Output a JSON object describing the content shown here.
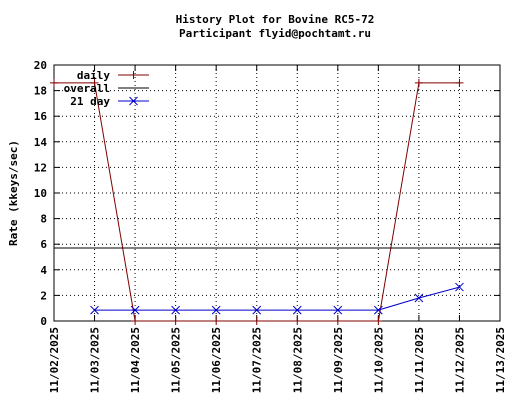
{
  "chart_data": {
    "type": "line",
    "title": "History Plot for Bovine RC5-72",
    "subtitle": "Participant flyid@pochtamt.ru",
    "xlabel": "",
    "ylabel": "Rate (kkeys/sec)",
    "xlim": [
      "11/02/2025",
      "11/13/2025"
    ],
    "ylim": [
      0,
      20
    ],
    "x_ticks": [
      "11/02/2025",
      "11/03/2025",
      "11/04/2025",
      "11/05/2025",
      "11/06/2025",
      "11/07/2025",
      "11/08/2025",
      "11/09/2025",
      "11/10/2025",
      "11/11/2025",
      "11/12/2025",
      "11/13/2025"
    ],
    "y_ticks": [
      0,
      2,
      4,
      6,
      8,
      10,
      12,
      14,
      16,
      18,
      20
    ],
    "grid": true,
    "legend_position": "top-left",
    "series": [
      {
        "name": "daily",
        "color": "#800000",
        "marker": "plus",
        "points": [
          {
            "x": "11/02/2025",
            "y": 18.6
          },
          {
            "x": "11/03/2025",
            "y": 18.6
          },
          {
            "x": "11/04/2025",
            "y": 0.0
          },
          {
            "x": "11/05/2025",
            "y": 0.0
          },
          {
            "x": "11/06/2025",
            "y": 0.0
          },
          {
            "x": "11/07/2025",
            "y": 0.0
          },
          {
            "x": "11/08/2025",
            "y": 0.0
          },
          {
            "x": "11/09/2025",
            "y": 0.0
          },
          {
            "x": "11/10/2025",
            "y": 0.0
          },
          {
            "x": "11/11/2025",
            "y": 18.6
          },
          {
            "x": "11/12/2025",
            "y": 18.6
          }
        ]
      },
      {
        "name": "overall",
        "color": "#000000",
        "marker": "none",
        "points": [
          {
            "x": "11/02/2025",
            "y": 5.7
          },
          {
            "x": "11/13/2025",
            "y": 5.7
          }
        ]
      },
      {
        "name": "21 day",
        "color": "#0000cc",
        "marker": "x",
        "points": [
          {
            "x": "11/03/2025",
            "y": 0.85
          },
          {
            "x": "11/04/2025",
            "y": 0.85
          },
          {
            "x": "11/05/2025",
            "y": 0.85
          },
          {
            "x": "11/06/2025",
            "y": 0.85
          },
          {
            "x": "11/07/2025",
            "y": 0.85
          },
          {
            "x": "11/08/2025",
            "y": 0.85
          },
          {
            "x": "11/09/2025",
            "y": 0.85
          },
          {
            "x": "11/10/2025",
            "y": 0.85
          },
          {
            "x": "11/11/2025",
            "y": 1.8
          },
          {
            "x": "11/12/2025",
            "y": 2.65
          }
        ]
      }
    ]
  }
}
